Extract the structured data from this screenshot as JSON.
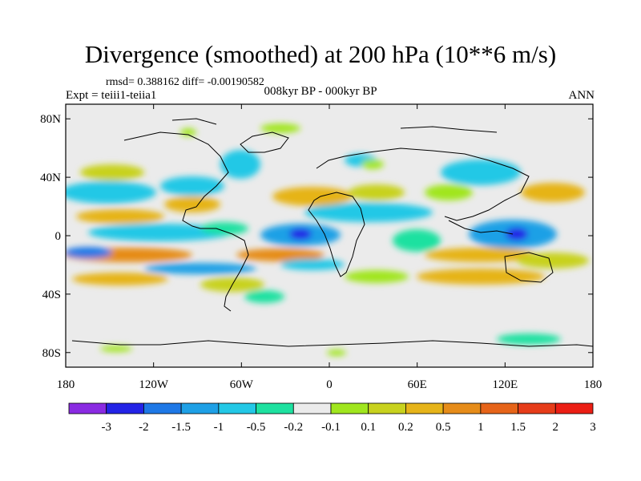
{
  "header": {
    "title": "Divergence (smoothed) at 200 hPa (10**6 m/s)",
    "stats": "rmsd= 0.388162 diff= -0.00190582",
    "experiment": "Expt = teiii1-teiia1",
    "period": "008kyr BP - 000kyr BP",
    "season": "ANN"
  },
  "axes": {
    "lat_ticks": [
      {
        "label": "80N",
        "lat": 80
      },
      {
        "label": "40N",
        "lat": 40
      },
      {
        "label": "0",
        "lat": 0
      },
      {
        "label": "40S",
        "lat": -40
      },
      {
        "label": "80S",
        "lat": -80
      }
    ],
    "lon_ticks": [
      {
        "label": "180",
        "lon": -180
      },
      {
        "label": "120W",
        "lon": -120
      },
      {
        "label": "60W",
        "lon": -60
      },
      {
        "label": "0",
        "lon": 0
      },
      {
        "label": "60E",
        "lon": 60
      },
      {
        "label": "120E",
        "lon": 120
      },
      {
        "label": "180",
        "lon": 180
      }
    ],
    "lon_range": [
      -180,
      180
    ],
    "lat_range": [
      -90,
      90
    ]
  },
  "colorbar": {
    "colors": [
      "#8a2be2",
      "#2323e6",
      "#1e78e6",
      "#1ea0e6",
      "#23c8e6",
      "#1ee1a0",
      "#ebebeb",
      "#a0e61e",
      "#c8d21e",
      "#e6b419",
      "#e68c19",
      "#e66419",
      "#e63c19",
      "#eb1e14"
    ],
    "labels": [
      "-3",
      "-2",
      "-1.5",
      "-1",
      "-0.5",
      "-0.2",
      "-0.1",
      "0.1",
      "0.2",
      "0.5",
      "1",
      "1.5",
      "2",
      "3"
    ]
  }
}
